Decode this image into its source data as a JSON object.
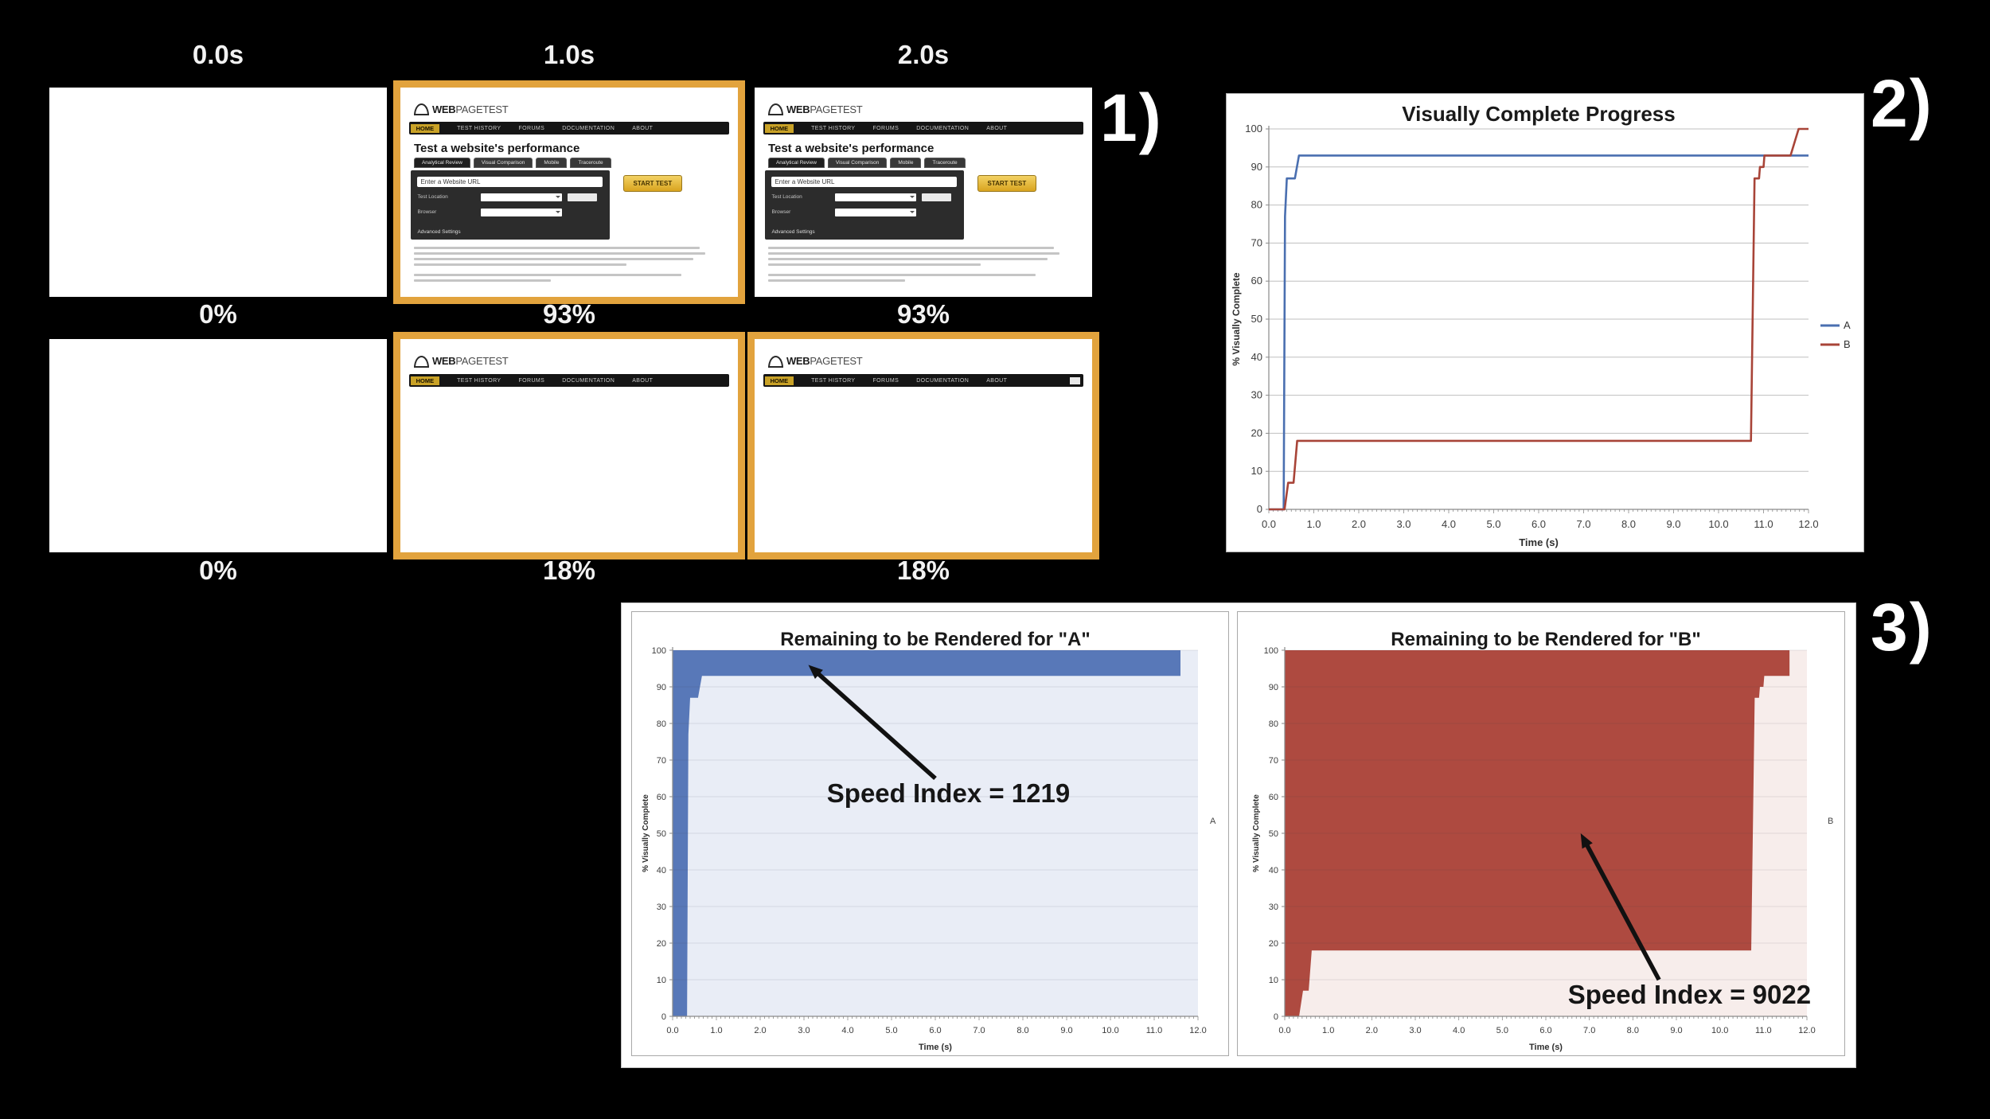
{
  "markers": {
    "m1": "1)",
    "m2": "2)",
    "m3": "3)"
  },
  "section1": {
    "time_labels": [
      "0.0s",
      "1.0s",
      "2.0s"
    ],
    "rows": [
      {
        "percents": [
          "0%",
          "93%",
          "93%"
        ],
        "thumbs": [
          {
            "content": "blank",
            "highlighted": false
          },
          {
            "content": "full",
            "highlighted": true
          },
          {
            "content": "full",
            "highlighted": false
          }
        ]
      },
      {
        "percents": [
          "0%",
          "18%",
          "18%"
        ],
        "thumbs": [
          {
            "content": "blank",
            "highlighted": false
          },
          {
            "content": "header",
            "highlighted": true
          },
          {
            "content": "header",
            "highlighted": true,
            "nav_box": true
          }
        ]
      }
    ],
    "site": {
      "logo_bold": "WEB",
      "logo_rest": "PAGETEST",
      "nav": [
        "HOME",
        "TEST HISTORY",
        "FORUMS",
        "DOCUMENTATION",
        "ABOUT"
      ],
      "heading": "Test a website's performance",
      "tabs": [
        "Analytical Review",
        "Visual Comparison",
        "Mobile",
        "Traceroute"
      ],
      "url_placeholder": "Enter a Website URL",
      "form_labels": [
        "Test Location",
        "Browser"
      ],
      "advanced": "Advanced Settings",
      "button": "START TEST"
    }
  },
  "chart_data": [
    {
      "id": "progress",
      "type": "line",
      "title": "Visually Complete Progress",
      "xlabel": "Time (s)",
      "ylabel": "% Visually Complete",
      "xlim": [
        0,
        12
      ],
      "ylim": [
        0,
        100
      ],
      "xtick_labels": [
        "0.0",
        "1.0",
        "2.0",
        "3.0",
        "4.0",
        "5.0",
        "6.0",
        "7.0",
        "8.0",
        "9.0",
        "10.0",
        "11.0",
        "12.0"
      ],
      "ytick_labels": [
        "0",
        "10",
        "20",
        "30",
        "40",
        "50",
        "60",
        "70",
        "80",
        "90",
        "100"
      ],
      "grid": "horizontal",
      "legend_position": "right",
      "series": [
        {
          "name": "A",
          "color": "#4a6fb0",
          "points": [
            [
              0,
              0
            ],
            [
              0.33,
              0
            ],
            [
              0.36,
              77
            ],
            [
              0.4,
              87
            ],
            [
              0.58,
              87
            ],
            [
              0.67,
              93
            ],
            [
              12,
              93
            ]
          ]
        },
        {
          "name": "B",
          "color": "#a84438",
          "points": [
            [
              0,
              0
            ],
            [
              0.35,
              0
            ],
            [
              0.43,
              7
            ],
            [
              0.55,
              7
            ],
            [
              0.63,
              18
            ],
            [
              10.72,
              18
            ],
            [
              10.8,
              87
            ],
            [
              10.9,
              87
            ],
            [
              10.92,
              90
            ],
            [
              11.0,
              90
            ],
            [
              11.02,
              93
            ],
            [
              11.6,
              93
            ],
            [
              11.78,
              100
            ],
            [
              12,
              100
            ]
          ]
        }
      ]
    },
    {
      "id": "remainA",
      "type": "area-remaining",
      "title": "Remaining to be Rendered for \"A\"",
      "xlabel": "Time (s)",
      "ylabel": "% Visually Complete",
      "legend": "A",
      "xlim": [
        0,
        12
      ],
      "ylim": [
        0,
        100
      ],
      "xtick_labels": [
        "0.0",
        "1.0",
        "2.0",
        "3.0",
        "4.0",
        "5.0",
        "6.0",
        "7.0",
        "8.0",
        "9.0",
        "10.0",
        "11.0",
        "12.0"
      ],
      "ytick_labels": [
        "0",
        "10",
        "20",
        "30",
        "40",
        "50",
        "60",
        "70",
        "80",
        "90",
        "100"
      ],
      "fill_color": "#5878b8",
      "plot_bg": "#e9edf6",
      "fill_end": 11.6,
      "progress_points": [
        [
          0,
          0
        ],
        [
          0.33,
          0
        ],
        [
          0.36,
          77
        ],
        [
          0.4,
          87
        ],
        [
          0.58,
          87
        ],
        [
          0.67,
          93
        ],
        [
          11.6,
          93
        ]
      ],
      "annotation": {
        "text": "Speed Index = 1219",
        "x": 6.3,
        "y": 61,
        "arrow_from": [
          6.0,
          65
        ],
        "arrow_to": [
          3.1,
          96
        ]
      }
    },
    {
      "id": "remainB",
      "type": "area-remaining",
      "title": "Remaining to be Rendered for \"B\"",
      "xlabel": "Time (s)",
      "ylabel": "% Visually Complete",
      "legend": "B",
      "xlim": [
        0,
        12
      ],
      "ylim": [
        0,
        100
      ],
      "xtick_labels": [
        "0.0",
        "1.0",
        "2.0",
        "3.0",
        "4.0",
        "5.0",
        "6.0",
        "7.0",
        "8.0",
        "9.0",
        "10.0",
        "11.0",
        "12.0"
      ],
      "ytick_labels": [
        "0",
        "10",
        "20",
        "30",
        "40",
        "50",
        "60",
        "70",
        "80",
        "90",
        "100"
      ],
      "fill_color": "#ae4a40",
      "plot_bg": "#f7edeb",
      "fill_end": 11.6,
      "progress_points": [
        [
          0,
          0
        ],
        [
          0.33,
          0
        ],
        [
          0.42,
          7
        ],
        [
          0.55,
          7
        ],
        [
          0.62,
          18
        ],
        [
          10.72,
          18
        ],
        [
          10.8,
          87
        ],
        [
          10.9,
          87
        ],
        [
          10.92,
          90
        ],
        [
          11.0,
          90
        ],
        [
          11.02,
          93
        ],
        [
          11.6,
          93
        ]
      ],
      "annotation": {
        "text": "Speed Index = 9022",
        "x": 9.3,
        "y": 6,
        "arrow_from": [
          8.6,
          10
        ],
        "arrow_to": [
          6.8,
          50
        ]
      }
    }
  ]
}
